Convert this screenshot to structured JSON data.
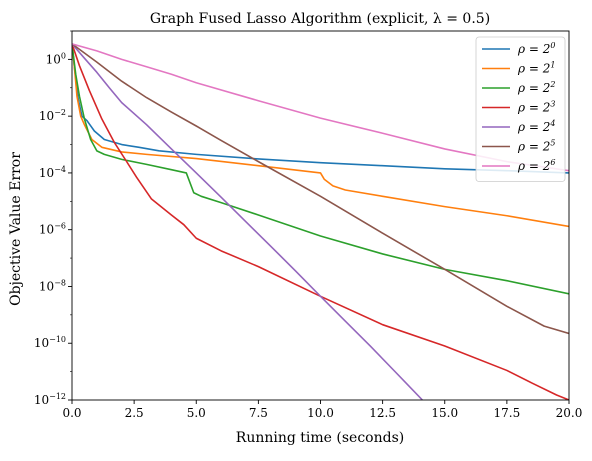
{
  "chart_data": {
    "type": "line",
    "title": "Graph Fused Lasso Algorithm (explicit, λ = 0.5)",
    "xlabel": "Running time (seconds)",
    "ylabel": "Objective Value Error",
    "xlim": [
      0,
      20
    ],
    "ylim": [
      1e-12,
      10
    ],
    "yscale": "log",
    "grid": false,
    "legend_position": "top-right",
    "x_ticks": [
      {
        "value": 0,
        "label": "0.0"
      },
      {
        "value": 2.5,
        "label": "2.5"
      },
      {
        "value": 5,
        "label": "5.0"
      },
      {
        "value": 7.5,
        "label": "7.5"
      },
      {
        "value": 10,
        "label": "10.0"
      },
      {
        "value": 12.5,
        "label": "12.5"
      },
      {
        "value": 15,
        "label": "15.0"
      },
      {
        "value": 17.5,
        "label": "17.5"
      },
      {
        "value": 20,
        "label": "20.0"
      }
    ],
    "y_ticks": [
      {
        "value": 1,
        "base": "10",
        "exp": "0"
      },
      {
        "value": 0.01,
        "base": "10",
        "exp": "−2"
      },
      {
        "value": 0.0001,
        "base": "10",
        "exp": "−4"
      },
      {
        "value": 1e-06,
        "base": "10",
        "exp": "−6"
      },
      {
        "value": 1e-08,
        "base": "10",
        "exp": "−8"
      },
      {
        "value": 1e-10,
        "base": "10",
        "exp": "−10"
      },
      {
        "value": 1e-12,
        "base": "10",
        "exp": "−12"
      }
    ],
    "series": [
      {
        "name": "ρ = 2^0",
        "name_base": "ρ = 2",
        "name_exp": "0",
        "color": "#1f77b4",
        "x": [
          0,
          0.1,
          0.25,
          0.4,
          0.6,
          0.9,
          1.3,
          2.0,
          2.7,
          3.5,
          5,
          7.5,
          10,
          12.5,
          15,
          17.5,
          20
        ],
        "y": [
          3.5,
          0.5,
          0.04,
          0.01,
          0.007,
          0.003,
          0.0015,
          0.001,
          0.0008,
          0.0006,
          0.00045,
          0.00031,
          0.00023,
          0.00018,
          0.00014,
          0.00012,
          0.0001
        ]
      },
      {
        "name": "ρ = 2^1",
        "name_base": "ρ = 2",
        "name_exp": "1",
        "color": "#ff7f0e",
        "x": [
          0,
          0.1,
          0.2,
          0.35,
          0.5,
          0.8,
          1.2,
          2.0,
          3,
          5,
          7.5,
          10,
          10.15,
          10.5,
          11,
          12.5,
          15,
          17.5,
          20
        ],
        "y": [
          3.5,
          0.5,
          0.05,
          0.01,
          0.005,
          0.0015,
          0.0008,
          0.00055,
          0.00045,
          0.00032,
          0.00018,
          0.0001,
          6e-05,
          3.5e-05,
          2.5e-05,
          1.5e-05,
          6.5e-06,
          3.1e-06,
          1.3e-06
        ]
      },
      {
        "name": "ρ = 2^2",
        "name_base": "ρ = 2",
        "name_exp": "2",
        "color": "#2ca02c",
        "x": [
          0,
          0.15,
          0.3,
          0.5,
          0.75,
          1.0,
          1.3,
          2,
          3,
          4,
          4.6,
          4.9,
          5.2,
          6,
          7.5,
          10,
          12.5,
          15,
          17.5,
          20
        ],
        "y": [
          3.5,
          0.3,
          0.05,
          0.008,
          0.0015,
          0.0006,
          0.00045,
          0.0003,
          0.0002,
          0.00013,
          0.0001,
          2e-05,
          1.5e-05,
          9e-06,
          3.3e-06,
          6e-07,
          1.4e-07,
          4e-08,
          1.6e-08,
          5.5e-09
        ]
      },
      {
        "name": "ρ = 2^3",
        "name_base": "ρ = 2",
        "name_exp": "3",
        "color": "#d62728",
        "x": [
          0,
          0.3,
          0.7,
          1.2,
          1.7,
          2.2,
          2.6,
          3.2,
          4,
          4.5,
          5,
          6,
          7.5,
          10,
          12.5,
          15,
          17.5,
          18.5,
          19.5,
          20
        ],
        "y": [
          3.5,
          0.6,
          0.08,
          0.008,
          0.0012,
          0.00025,
          7e-05,
          1.2e-05,
          3.3e-06,
          1.5e-06,
          5e-07,
          1.8e-07,
          5e-08,
          4.5e-09,
          4.5e-10,
          8e-11,
          1.1e-11,
          4e-12,
          1.5e-12,
          1e-12
        ]
      },
      {
        "name": "ρ = 2^4",
        "name_base": "ρ = 2",
        "name_exp": "4",
        "color": "#9467bd",
        "x": [
          0,
          0.5,
          1,
          1.5,
          2,
          3,
          4,
          5,
          6,
          7,
          8,
          9,
          10,
          11,
          12,
          13,
          14.1
        ],
        "y": [
          3.5,
          1.1,
          0.35,
          0.1,
          0.03,
          0.005,
          0.0007,
          0.0001,
          1.4e-05,
          1.9e-06,
          2.6e-07,
          3.5e-08,
          4.5e-09,
          6e-10,
          8e-11,
          1e-11,
          1e-12
        ]
      },
      {
        "name": "ρ = 2^5",
        "name_base": "ρ = 2",
        "name_exp": "5",
        "color": "#8c564b",
        "x": [
          0,
          1,
          2,
          3,
          4,
          5,
          6,
          7.5,
          10,
          12.5,
          15,
          17.5,
          19,
          20
        ],
        "y": [
          3.5,
          0.8,
          0.17,
          0.045,
          0.014,
          0.0045,
          0.0014,
          0.00025,
          1.5e-05,
          7.5e-07,
          4e-08,
          2e-09,
          4e-10,
          2.2e-10
        ]
      },
      {
        "name": "ρ = 2^6",
        "name_base": "ρ = 2",
        "name_exp": "6",
        "color": "#e377c2",
        "x": [
          0,
          1,
          2,
          3,
          4,
          5,
          7.5,
          10,
          12.5,
          15,
          17.5,
          20
        ],
        "y": [
          3.5,
          2.0,
          1.0,
          0.55,
          0.3,
          0.15,
          0.035,
          0.0085,
          0.0025,
          0.0007,
          0.00025,
          0.00012
        ]
      }
    ]
  }
}
